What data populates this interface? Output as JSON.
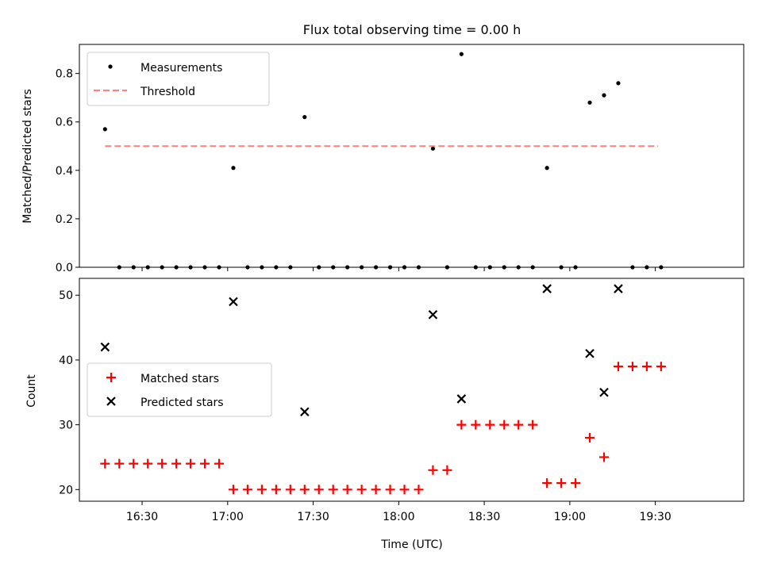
{
  "chart_data": [
    {
      "type": "scatter",
      "title": "Flux total observing time = 0.00 h",
      "ylabel": "Matched/Predicted stars",
      "xlabel": "",
      "ylim": [
        0,
        0.92
      ],
      "yticks": [
        0.0,
        0.2,
        0.4,
        0.6,
        0.8
      ],
      "ytick_labels": [
        "0.0",
        "0.2",
        "0.4",
        "0.6",
        "0.8"
      ],
      "x_axis_kind": "time",
      "xlim": [
        "16:08",
        "20:01"
      ],
      "grid": false,
      "legend": "top-left",
      "series": [
        {
          "name": "Measurements",
          "marker": "dot",
          "color": "#000000",
          "x": [
            "16:17",
            "16:22",
            "16:27",
            "16:32",
            "16:37",
            "16:42",
            "16:47",
            "16:52",
            "16:57",
            "17:02",
            "17:07",
            "17:12",
            "17:17",
            "17:22",
            "17:27",
            "17:32",
            "17:37",
            "17:42",
            "17:47",
            "17:52",
            "17:57",
            "18:02",
            "18:07",
            "18:12",
            "18:17",
            "18:22",
            "18:27",
            "18:32",
            "18:37",
            "18:42",
            "18:47",
            "18:52",
            "18:57",
            "19:02",
            "19:07",
            "19:12",
            "19:17",
            "19:22",
            "19:27",
            "19:32"
          ],
          "y": [
            0.57,
            0,
            0,
            0,
            0,
            0,
            0,
            0,
            0,
            0.41,
            0,
            0,
            0,
            0,
            0.62,
            0,
            0,
            0,
            0,
            0,
            0,
            0,
            0,
            0.49,
            0,
            0.88,
            0,
            0,
            0,
            0,
            0,
            0.41,
            0,
            0,
            0.68,
            0.71,
            0.76,
            0,
            0,
            0
          ]
        },
        {
          "name": "Threshold",
          "line": "dashed",
          "color": "#ff8080",
          "x": [
            "16:17",
            "19:31"
          ],
          "y": [
            0.5,
            0.5
          ]
        }
      ]
    },
    {
      "type": "scatter",
      "title": "",
      "xlabel": "Time (UTC)",
      "ylabel": "Count",
      "ylim": [
        18.2,
        52.6
      ],
      "yticks": [
        20,
        30,
        40,
        50
      ],
      "ytick_labels": [
        "20",
        "30",
        "40",
        "50"
      ],
      "x_axis_kind": "time",
      "xlim": [
        "16:08",
        "20:01"
      ],
      "xticks": [
        "16:30",
        "17:00",
        "17:30",
        "18:00",
        "18:30",
        "19:00",
        "19:30"
      ],
      "xtick_labels": [
        "16:30",
        "17:00",
        "17:30",
        "18:00",
        "18:30",
        "19:00",
        "19:30"
      ],
      "grid": false,
      "legend": "center-left",
      "series": [
        {
          "name": "Matched stars",
          "marker": "plus",
          "color": "#ff0000",
          "x": [
            "16:17",
            "16:22",
            "16:27",
            "16:32",
            "16:37",
            "16:42",
            "16:47",
            "16:52",
            "16:57",
            "17:02",
            "17:07",
            "17:12",
            "17:17",
            "17:22",
            "17:27",
            "17:32",
            "17:37",
            "17:42",
            "17:47",
            "17:52",
            "17:57",
            "18:02",
            "18:07",
            "18:12",
            "18:17",
            "18:22",
            "18:27",
            "18:32",
            "18:37",
            "18:42",
            "18:47",
            "18:52",
            "18:57",
            "19:02",
            "19:07",
            "19:12",
            "19:17",
            "19:22",
            "19:27",
            "19:32"
          ],
          "y": [
            24,
            24,
            24,
            24,
            24,
            24,
            24,
            24,
            24,
            20,
            20,
            20,
            20,
            20,
            20,
            20,
            20,
            20,
            20,
            20,
            20,
            20,
            20,
            23,
            23,
            30,
            30,
            30,
            30,
            30,
            30,
            21,
            21,
            21,
            28,
            25,
            39,
            39,
            39,
            39
          ]
        },
        {
          "name": "Predicted stars",
          "marker": "x",
          "color": "#000000",
          "x": [
            "16:17",
            "17:02",
            "17:27",
            "18:12",
            "18:22",
            "18:52",
            "19:07",
            "19:12",
            "19:17"
          ],
          "y": [
            42,
            49,
            32,
            47,
            34,
            51,
            41,
            35,
            51
          ]
        }
      ]
    }
  ]
}
